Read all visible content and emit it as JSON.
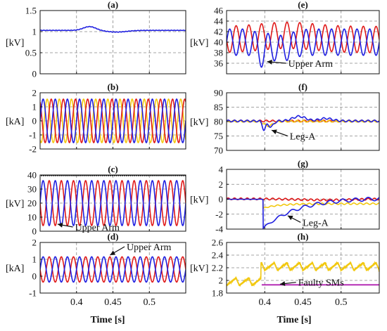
{
  "figure": {
    "xlabel_left": "Time [s]",
    "xlabel_right": "Time [s]"
  },
  "colors": {
    "blue": "#1f1fe0",
    "red": "#e01b1b",
    "yellow": "#f2c80f",
    "black": "#111111",
    "magenta": "#b020b0",
    "grid": "#888888"
  },
  "chart_data": [
    {
      "id": "a",
      "title": "(a)",
      "type": "line",
      "ylabel": "[kV]",
      "xlim": [
        0.35,
        0.55
      ],
      "ylim": [
        0,
        1.5
      ],
      "xticks": [
        0.4,
        0.45,
        0.5
      ],
      "yticks": [
        0,
        0.5,
        1,
        1.5
      ],
      "ytick_labels": [
        "0",
        "0.5",
        "1",
        "1.5"
      ],
      "xtick_labels": [],
      "series": [
        {
          "color": "blue",
          "type": "wave",
          "base": 1.03,
          "amp": 0.005,
          "freq": 240,
          "bumps": [
            {
              "t": 0.418,
              "a": 0.09,
              "w": 0.012
            },
            {
              "t": 0.455,
              "a": -0.04,
              "w": 0.02
            }
          ]
        }
      ],
      "annotations": []
    },
    {
      "id": "b",
      "title": "(b)",
      "type": "line",
      "ylabel": "[kA]",
      "xlim": [
        0.35,
        0.55
      ],
      "ylim": [
        -2,
        2
      ],
      "xticks": [
        0.4,
        0.45,
        0.5
      ],
      "yticks": [
        -2,
        -1,
        0,
        1,
        2
      ],
      "ytick_labels": [
        "-2",
        "-1",
        "0",
        "1",
        "2"
      ],
      "xtick_labels": [],
      "series": [
        {
          "color": "yellow",
          "type": "wave",
          "base": 0,
          "amp": 1.55,
          "freq": 60,
          "phase": 240
        },
        {
          "color": "red",
          "type": "wave",
          "base": 0,
          "amp": 1.55,
          "freq": 60,
          "phase": 120
        },
        {
          "color": "blue",
          "type": "wave",
          "base": 0,
          "amp": 1.55,
          "freq": 60,
          "phase": 0
        }
      ],
      "annotations": []
    },
    {
      "id": "c",
      "title": "(c)",
      "type": "line",
      "ylabel": "[kV]",
      "xlim": [
        0.35,
        0.55
      ],
      "ylim": [
        0,
        40
      ],
      "xticks": [
        0.4,
        0.45,
        0.5
      ],
      "yticks": [
        0,
        10,
        20,
        30,
        40
      ],
      "ytick_labels": [
        "0",
        "10",
        "20",
        "30",
        "40"
      ],
      "xtick_labels": [],
      "series": [
        {
          "color": "black",
          "type": "wave",
          "base": 40,
          "amp": 0.5,
          "freq": 360,
          "phase": 0
        },
        {
          "color": "red",
          "type": "wave",
          "base": 20,
          "amp": 16,
          "freq": 60,
          "phase": 180
        },
        {
          "color": "blue",
          "type": "wave",
          "base": 20,
          "amp": 16,
          "freq": 60,
          "phase": 0
        }
      ],
      "annotations": [
        {
          "text": "Upper Arm",
          "tx": 0.395,
          "ty": 3,
          "ax": 0.374,
          "ay": 5
        }
      ]
    },
    {
      "id": "d",
      "title": "(d)",
      "type": "line",
      "ylabel": "[kA]",
      "xlim": [
        0.35,
        0.55
      ],
      "ylim": [
        -1,
        2
      ],
      "xticks": [
        0.4,
        0.45,
        0.5
      ],
      "yticks": [
        -1,
        0,
        1,
        2
      ],
      "ytick_labels": [
        "-1",
        "0",
        "1",
        "2"
      ],
      "xtick_labels": [
        "0.4",
        "0.45",
        "0.5"
      ],
      "series": [
        {
          "color": "red",
          "type": "wave",
          "base": 0.4,
          "amp": 0.75,
          "freq": 60,
          "phase": 180
        },
        {
          "color": "blue",
          "type": "wave",
          "base": 0.4,
          "amp": 0.75,
          "freq": 60,
          "phase": 0
        }
      ],
      "annotations": [
        {
          "text": "Upper Arm",
          "tx": 0.466,
          "ty": 1.75,
          "ax": 0.446,
          "ay": 1.25
        }
      ]
    },
    {
      "id": "e",
      "title": "(e)",
      "type": "line",
      "ylabel": "[kV]",
      "xlim": [
        0.35,
        0.55
      ],
      "ylim": [
        34,
        46
      ],
      "xticks": [
        0.4,
        0.45,
        0.5
      ],
      "yticks": [
        36,
        38,
        40,
        42,
        44,
        46
      ],
      "ytick_labels": [
        "36",
        "38",
        "40",
        "42",
        "44",
        "46"
      ],
      "xtick_labels": [],
      "series": [
        {
          "color": "red",
          "type": "wave",
          "base": 40.5,
          "amp": 2.5,
          "freq": 60,
          "phase": 180,
          "bumps": [
            {
              "t": 0.43,
              "a": 0.8,
              "w": 0.05
            }
          ]
        },
        {
          "color": "blue",
          "type": "wave",
          "base": 40,
          "amp": 2.5,
          "freq": 60,
          "phase": 0,
          "bumps": [
            {
              "t": 0.395,
              "a": -2.0,
              "w": 0.006
            },
            {
              "t": 0.42,
              "a": -1.2,
              "w": 0.02
            }
          ]
        }
      ],
      "annotations": [
        {
          "text": "Upper Arm",
          "tx": 0.428,
          "ty": 36,
          "ax": 0.403,
          "ay": 36.3
        }
      ]
    },
    {
      "id": "f",
      "title": "(f)",
      "type": "line",
      "ylabel": "[kV]",
      "xlim": [
        0.35,
        0.55
      ],
      "ylim": [
        70,
        90
      ],
      "xticks": [
        0.4,
        0.45,
        0.5
      ],
      "yticks": [
        70,
        75,
        80,
        85,
        90
      ],
      "ytick_labels": [
        "70",
        "75",
        "80",
        "85",
        "90"
      ],
      "xtick_labels": [],
      "series": [
        {
          "color": "red",
          "type": "wave",
          "base": 80.2,
          "amp": 0.3,
          "freq": 120,
          "phase": 0
        },
        {
          "color": "yellow",
          "type": "wave",
          "base": 80.1,
          "amp": 0.3,
          "freq": 120,
          "phase": 60,
          "bumps": [
            {
              "t": 0.405,
              "a": -1.6,
              "w": 0.008
            }
          ]
        },
        {
          "color": "blue",
          "type": "wave",
          "base": 80.2,
          "amp": 0.3,
          "freq": 120,
          "phase": 0,
          "bumps": [
            {
              "t": 0.399,
              "a": -3.0,
              "w": 0.003
            },
            {
              "t": 0.408,
              "a": -2.0,
              "w": 0.005
            },
            {
              "t": 0.445,
              "a": 1.6,
              "w": 0.012
            },
            {
              "t": 0.48,
              "a": 0.9,
              "w": 0.012
            }
          ]
        }
      ],
      "annotations": [
        {
          "text": "Leg-A",
          "tx": 0.43,
          "ty": 75,
          "ax": 0.409,
          "ay": 77
        }
      ]
    },
    {
      "id": "g",
      "title": "(g)",
      "type": "line",
      "ylabel": "[kV]",
      "xlim": [
        0.35,
        0.55
      ],
      "ylim": [
        -4,
        4
      ],
      "xticks": [
        0.4,
        0.45,
        0.5
      ],
      "yticks": [
        -4,
        -2,
        0,
        2,
        4
      ],
      "ytick_labels": [
        "-4",
        "-2",
        "0",
        "2",
        "4"
      ],
      "xtick_labels": [],
      "series": [
        {
          "color": "red",
          "type": "wave",
          "base": 0.05,
          "amp": 0.12,
          "freq": 120,
          "phase": 0,
          "bumps": [
            {
              "t": 0.48,
              "a": -0.15,
              "w": 0.05
            }
          ]
        },
        {
          "color": "yellow",
          "type": "recover",
          "t0": 0.398,
          "depth": -1.2,
          "settle": -0.6,
          "tau": 0.02,
          "amp": 0.1,
          "freq": 120
        },
        {
          "color": "blue",
          "type": "recover",
          "t0": 0.398,
          "depth": -3.9,
          "settle": 0.2,
          "tau": 0.045,
          "amp": 0.25,
          "freq": 60
        }
      ],
      "annotations": [
        {
          "text": "Leg-A",
          "tx": 0.447,
          "ty": -3.1,
          "ax": 0.43,
          "ay": -2.2
        }
      ]
    },
    {
      "id": "h",
      "title": "(h)",
      "type": "line",
      "ylabel": "[kV]",
      "xlim": [
        0.35,
        0.55
      ],
      "ylim": [
        1.8,
        2.6
      ],
      "xticks": [
        0.4,
        0.45,
        0.5
      ],
      "yticks": [
        1.8,
        2.0,
        2.2,
        2.4,
        2.6
      ],
      "ytick_labels": [
        "1.8",
        "2",
        "2.2",
        "2.4",
        "2.6"
      ],
      "xtick_labels": [
        "0.4",
        "0.45",
        "0.5"
      ],
      "series": [
        {
          "color": "yellow",
          "type": "sawtooth",
          "base": 1.98,
          "step_t": 0.395,
          "step_base": 2.22,
          "amp": 0.12,
          "freq": 60
        },
        {
          "color": "magenta",
          "type": "step",
          "t0": 0.396,
          "value": 1.93
        }
      ],
      "annotations": [
        {
          "text": "Faulty SMs",
          "tx": 0.441,
          "ty": 1.97,
          "ax": 0.42,
          "ay": 1.94
        }
      ]
    }
  ]
}
